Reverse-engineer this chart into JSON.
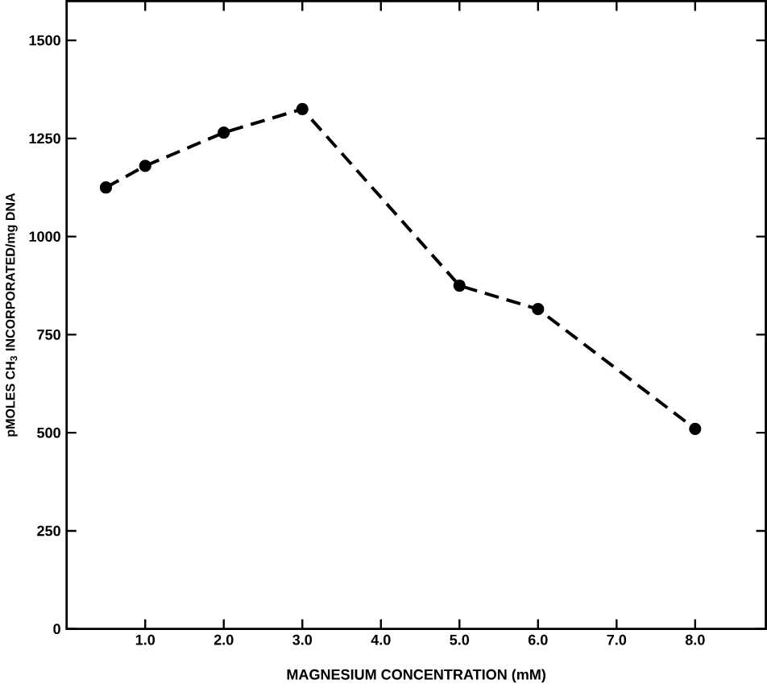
{
  "chart_data": {
    "type": "line",
    "xlabel": "MAGNESIUM CONCENTRATION (mM)",
    "ylabel": "pMOLES CH$_{3}$ INCORPORATED/mg DNA",
    "x": [
      0.5,
      1.0,
      2.0,
      3.0,
      5.0,
      6.0,
      8.0
    ],
    "series": [
      {
        "color": "#000000",
        "values": [
          1125,
          1180,
          1265,
          1325,
          875,
          815,
          510
        ]
      }
    ],
    "xlim": [
      0,
      8.9
    ],
    "xticks": [
      {
        "value": 1,
        "label": "1.0"
      },
      {
        "value": 2,
        "label": "2.0"
      },
      {
        "value": 3,
        "label": "3.0"
      },
      {
        "value": 4,
        "label": "4.0"
      },
      {
        "value": 5,
        "label": "5.0"
      },
      {
        "value": 6,
        "label": "6.0"
      },
      {
        "value": 7,
        "label": "7.0"
      },
      {
        "value": 8,
        "label": "8.0"
      }
    ],
    "ylim": [
      0,
      1600
    ],
    "yticks": [
      0,
      250,
      500,
      750,
      1000,
      1250,
      1500
    ],
    "marker": "circle",
    "line_style": "dashed"
  }
}
